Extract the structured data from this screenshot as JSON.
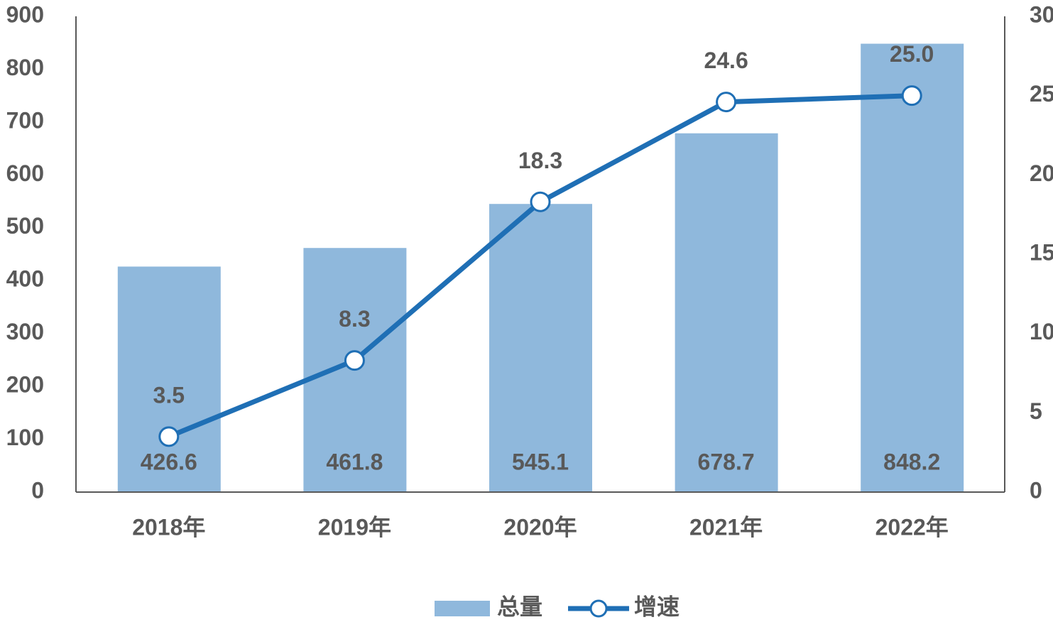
{
  "chart_data": {
    "type": "bar",
    "categories": [
      "2018年",
      "2019年",
      "2020年",
      "2021年",
      "2022年"
    ],
    "series": [
      {
        "name": "总量",
        "type": "bar",
        "color": "#8fb8dc",
        "values": [
          426.6,
          461.8,
          545.1,
          678.7,
          848.2
        ]
      },
      {
        "name": "增速",
        "type": "line",
        "axis": "y2",
        "color": "#1f6fb5",
        "values": [
          3.5,
          8.3,
          18.3,
          24.6,
          25.0
        ],
        "value_labels": [
          "3.5",
          "8.3",
          "18.3",
          "24.6",
          "25.0"
        ]
      }
    ],
    "ylim": [
      0,
      900
    ],
    "yticks": [
      0,
      100,
      200,
      300,
      400,
      500,
      600,
      700,
      800,
      900
    ],
    "y2lim": [
      0,
      30
    ],
    "y2ticks": [
      0,
      5,
      10,
      15,
      20,
      25,
      30
    ],
    "legend": "bottom"
  }
}
